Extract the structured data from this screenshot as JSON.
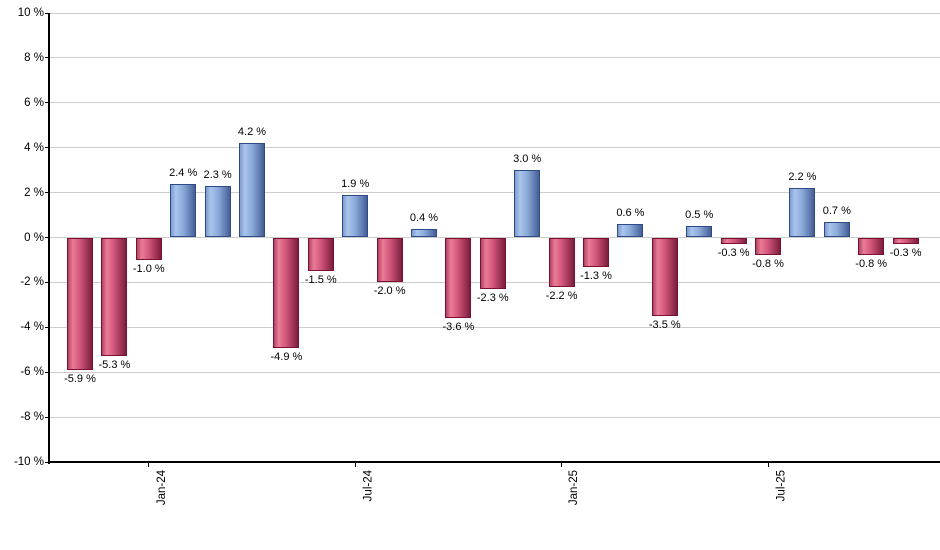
{
  "chart_data": {
    "type": "bar",
    "title": "",
    "xlabel": "",
    "ylabel": "",
    "values": [
      -5.9,
      -5.3,
      -1.0,
      2.4,
      2.3,
      4.2,
      -4.9,
      -1.5,
      1.9,
      -2.0,
      0.4,
      -3.6,
      -2.3,
      3.0,
      -2.2,
      -1.3,
      0.6,
      -3.5,
      0.5,
      -0.3,
      -0.8,
      2.2,
      0.7,
      -0.8,
      -0.3
    ],
    "bar_labels": [
      "-5.9 %",
      "-5.3 %",
      "-1.0 %",
      "2.4 %",
      "2.3 %",
      "4.2 %",
      "-4.9 %",
      "-1.5 %",
      "1.9 %",
      "-2.0 %",
      "0.4 %",
      "-3.6 %",
      "-2.3 %",
      "3.0 %",
      "-2.2 %",
      "-1.3 %",
      "0.6 %",
      "-3.5 %",
      "0.5 %",
      "-0.3 %",
      "-0.8 %",
      "2.2 %",
      "0.7 %",
      "-0.8 %",
      "-0.3 %"
    ],
    "x_ticks": [
      {
        "label": "Jan-24",
        "index": 2
      },
      {
        "label": "Jul-24",
        "index": 8
      },
      {
        "label": "Jan-25",
        "index": 14
      },
      {
        "label": "Jul-25",
        "index": 20
      }
    ],
    "y_axis": {
      "min": -10,
      "max": 10,
      "step": 2,
      "suffix": " %",
      "tick_labels": [
        "10 %",
        "8 %",
        "6 %",
        "4 %",
        "2 %",
        "0 %",
        "-2 %",
        "-4 %",
        "-6 %",
        "-8 %",
        "-10 %"
      ]
    },
    "ylim": [
      -10,
      10
    ],
    "grid": true,
    "legend": null,
    "colors": {
      "positive_gradient": [
        "#7e9cd0",
        "#aac4ec",
        "#8cabdb",
        "#455f96"
      ],
      "positive_border": "#2c4c87",
      "negative_gradient": [
        "#ad4365",
        "#ea7c96",
        "#d2567a",
        "#7b1d3e"
      ],
      "negative_border": "#7b1030",
      "gridline": "#cccccc",
      "axis": "#000000",
      "text": "#000000"
    }
  }
}
